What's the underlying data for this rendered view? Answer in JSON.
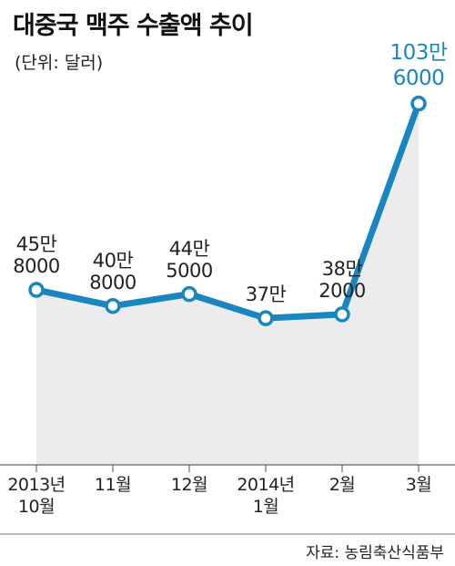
{
  "chart_data": {
    "type": "line",
    "title": "대중국 맥주 수출액 추이",
    "subtitle": "(단위: 달러)",
    "source": "자료: 농림축산식품부",
    "categories": [
      "2013년\n10월",
      "11월",
      "12월",
      "2014년\n1월",
      "2월",
      "3월"
    ],
    "series": [
      {
        "color": "#1a86c0",
        "values": [
          458000,
          408000,
          445000,
          370000,
          382000,
          1036000
        ],
        "value_labels": [
          "45만\n8000",
          "40만\n8000",
          "44만\n5000",
          "37만",
          "38만\n2000",
          "103만\n6000"
        ]
      }
    ],
    "ylim": [
      0,
      1100000
    ]
  }
}
